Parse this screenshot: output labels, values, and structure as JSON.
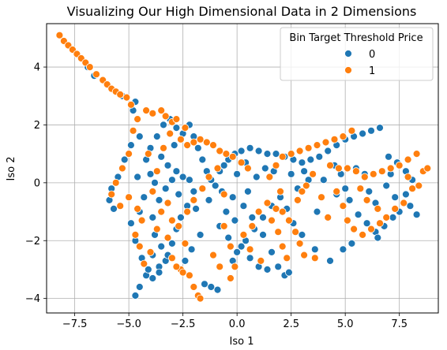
{
  "chart_data": {
    "type": "scatter",
    "title": "Visualizing Our High Dimensional Data in 2 Dimensions",
    "xlabel": "Iso 1",
    "ylabel": "Iso 2",
    "xlim": [
      -8.8,
      9.3
    ],
    "ylim": [
      -4.5,
      5.5
    ],
    "xticks": [
      -7.5,
      -5.0,
      -2.5,
      0.0,
      2.5,
      5.0,
      7.5
    ],
    "xtick_labels": [
      "−7.5",
      "−5.0",
      "−2.5",
      "0.0",
      "2.5",
      "5.0",
      "7.5"
    ],
    "yticks": [
      -4,
      -2,
      0,
      2,
      4
    ],
    "ytick_labels": [
      "−4",
      "−2",
      "0",
      "2",
      "4"
    ],
    "grid": true,
    "legend": {
      "title": "Bin Target Threshold Price",
      "placement": "top-right",
      "entries": [
        "0",
        "1"
      ]
    },
    "colors": {
      "0": "#1f77b4",
      "1": "#ff7f0e"
    },
    "series": [
      {
        "name": "0",
        "points": [
          [
            -6.9,
            4.0
          ],
          [
            -6.6,
            3.7
          ],
          [
            -5.3,
            3.0
          ],
          [
            -4.7,
            2.8
          ],
          [
            -4.8,
            2.5
          ],
          [
            -4.5,
            1.6
          ],
          [
            -4.9,
            1.3
          ],
          [
            -5.2,
            0.8
          ],
          [
            -5.5,
            0.2
          ],
          [
            -5.8,
            -0.2
          ],
          [
            -5.9,
            -0.6
          ],
          [
            -5.7,
            -0.9
          ],
          [
            -4.9,
            -1.4
          ],
          [
            -4.7,
            -2.0
          ],
          [
            -4.4,
            -2.6
          ],
          [
            -4.2,
            -3.2
          ],
          [
            -4.5,
            -3.6
          ],
          [
            -4.7,
            -3.9
          ],
          [
            -4.1,
            -3.0
          ],
          [
            -3.9,
            -2.5
          ],
          [
            -3.6,
            -2.9
          ],
          [
            -3.3,
            -2.7
          ],
          [
            -3.5,
            -2.2
          ],
          [
            -3.8,
            -1.8
          ],
          [
            -3.9,
            -1.2
          ],
          [
            -3.6,
            -0.6
          ],
          [
            -3.3,
            -0.2
          ],
          [
            -3.0,
            0.1
          ],
          [
            -2.8,
            0.4
          ],
          [
            -2.5,
            0.2
          ],
          [
            -2.2,
            0.1
          ],
          [
            -2.0,
            -0.3
          ],
          [
            -2.3,
            -0.8
          ],
          [
            -2.6,
            -1.2
          ],
          [
            -2.8,
            -1.6
          ],
          [
            -3.0,
            -2.1
          ],
          [
            -3.2,
            -2.5
          ],
          [
            -3.6,
            -3.1
          ],
          [
            -3.9,
            -3.3
          ],
          [
            -4.0,
            0.3
          ],
          [
            -4.2,
            0.8
          ],
          [
            -4.0,
            1.2
          ],
          [
            -3.7,
            1.6
          ],
          [
            -3.4,
            2.0
          ],
          [
            -3.1,
            2.2
          ],
          [
            -2.8,
            1.9
          ],
          [
            -2.5,
            1.7
          ],
          [
            -2.2,
            2.0
          ],
          [
            -2.0,
            1.6
          ],
          [
            -1.8,
            1.2
          ],
          [
            -1.6,
            0.8
          ],
          [
            -1.4,
            0.4
          ],
          [
            -1.2,
            0.1
          ],
          [
            -1.0,
            -0.1
          ],
          [
            -0.8,
            0.4
          ],
          [
            -0.6,
            0.6
          ],
          [
            -0.4,
            0.8
          ],
          [
            -0.1,
            1.0
          ],
          [
            0.2,
            1.1
          ],
          [
            0.6,
            1.2
          ],
          [
            1.0,
            1.1
          ],
          [
            1.4,
            1.0
          ],
          [
            1.8,
            1.0
          ],
          [
            2.2,
            0.9
          ],
          [
            2.6,
            0.8
          ],
          [
            3.0,
            0.7
          ],
          [
            3.4,
            0.8
          ],
          [
            3.8,
            0.9
          ],
          [
            4.2,
            1.1
          ],
          [
            4.6,
            1.3
          ],
          [
            5.0,
            1.5
          ],
          [
            5.4,
            1.6
          ],
          [
            5.8,
            1.7
          ],
          [
            6.2,
            1.8
          ],
          [
            6.6,
            1.9
          ],
          [
            7.0,
            0.9
          ],
          [
            7.4,
            0.7
          ],
          [
            7.8,
            0.4
          ],
          [
            8.1,
            0.1
          ],
          [
            7.8,
            -0.4
          ],
          [
            8.0,
            -0.8
          ],
          [
            8.3,
            -1.1
          ],
          [
            7.5,
            -1.0
          ],
          [
            7.2,
            -1.2
          ],
          [
            6.8,
            -1.5
          ],
          [
            6.4,
            -1.7
          ],
          [
            6.0,
            -1.4
          ],
          [
            5.6,
            -1.1
          ],
          [
            5.2,
            -0.6
          ],
          [
            5.0,
            -0.2
          ],
          [
            4.8,
            0.3
          ],
          [
            4.5,
            0.6
          ],
          [
            5.9,
            0.3
          ],
          [
            6.1,
            -0.3
          ],
          [
            6.4,
            -0.7
          ],
          [
            6.5,
            -1.9
          ],
          [
            5.3,
            -2.1
          ],
          [
            4.9,
            -2.3
          ],
          [
            4.3,
            -2.7
          ],
          [
            3.6,
            -2.3
          ],
          [
            3.0,
            -1.8
          ],
          [
            2.6,
            -1.4
          ],
          [
            2.3,
            -0.9
          ],
          [
            2.0,
            -0.5
          ],
          [
            1.6,
            -0.8
          ],
          [
            1.2,
            -1.2
          ],
          [
            0.8,
            -1.6
          ],
          [
            0.4,
            -2.0
          ],
          [
            0.0,
            -2.4
          ],
          [
            -0.2,
            -2.7
          ],
          [
            0.2,
            -2.2
          ],
          [
            0.6,
            -2.6
          ],
          [
            1.0,
            -2.9
          ],
          [
            1.4,
            -3.0
          ],
          [
            1.9,
            -2.9
          ],
          [
            2.2,
            -3.2
          ],
          [
            2.4,
            -3.1
          ],
          [
            1.6,
            -2.4
          ],
          [
            1.2,
            -1.8
          ],
          [
            0.7,
            -1.2
          ],
          [
            0.3,
            -0.8
          ],
          [
            -0.2,
            -0.5
          ],
          [
            -0.5,
            -1.0
          ],
          [
            -0.8,
            -1.5
          ],
          [
            -0.4,
            -1.9
          ],
          [
            -0.1,
            -1.3
          ],
          [
            0.5,
            -0.3
          ],
          [
            0.9,
            0.2
          ],
          [
            1.3,
            0.5
          ],
          [
            1.7,
            0.4
          ],
          [
            2.5,
            0.3
          ],
          [
            2.8,
            -0.2
          ],
          [
            3.1,
            0.4
          ],
          [
            3.3,
            0.1
          ],
          [
            4.0,
            0.1
          ],
          [
            5.5,
            0.5
          ],
          [
            6.9,
            -0.1
          ],
          [
            7.1,
            0.3
          ],
          [
            -2.7,
            -0.4
          ],
          [
            -2.9,
            1.3
          ],
          [
            -3.2,
            0.6
          ],
          [
            -3.5,
            0.9
          ],
          [
            -3.8,
            0.0
          ],
          [
            -4.3,
            -0.5
          ],
          [
            -4.5,
            -1.0
          ],
          [
            -4.6,
            0.2
          ],
          [
            -1.5,
            -3.5
          ],
          [
            -1.2,
            -3.6
          ],
          [
            -0.9,
            -3.7
          ],
          [
            -2.1,
            -2.3
          ],
          [
            -2.4,
            -2.7
          ],
          [
            -1.7,
            -1.8
          ],
          [
            -1.9,
            -0.9
          ],
          [
            -1.3,
            -0.6
          ],
          [
            -0.7,
            -0.3
          ],
          [
            0.0,
            0.3
          ],
          [
            0.4,
            0.7
          ],
          [
            3.7,
            -1.0
          ],
          [
            4.6,
            -0.4
          ],
          [
            7.3,
            -0.5
          ]
        ]
      },
      {
        "name": "1",
        "points": [
          [
            -8.2,
            5.1
          ],
          [
            -8.0,
            4.9
          ],
          [
            -7.8,
            4.75
          ],
          [
            -7.6,
            4.6
          ],
          [
            -7.4,
            4.45
          ],
          [
            -7.2,
            4.3
          ],
          [
            -7.0,
            4.15
          ],
          [
            -6.8,
            4.0
          ],
          [
            -6.5,
            3.75
          ],
          [
            -6.2,
            3.55
          ],
          [
            -6.0,
            3.4
          ],
          [
            -5.8,
            3.25
          ],
          [
            -5.6,
            3.15
          ],
          [
            -5.4,
            3.05
          ],
          [
            -5.1,
            2.95
          ],
          [
            -4.9,
            2.7
          ],
          [
            -4.2,
            2.5
          ],
          [
            -3.9,
            2.4
          ],
          [
            -3.5,
            2.5
          ],
          [
            -3.3,
            2.3
          ],
          [
            -3.0,
            2.1
          ],
          [
            -2.6,
            1.5
          ],
          [
            -2.3,
            1.3
          ],
          [
            -2.0,
            1.4
          ],
          [
            -1.7,
            1.5
          ],
          [
            -1.4,
            1.4
          ],
          [
            -1.1,
            1.3
          ],
          [
            -0.8,
            1.1
          ],
          [
            -0.5,
            1.0
          ],
          [
            -0.2,
            0.9
          ],
          [
            0.2,
            0.7
          ],
          [
            0.5,
            0.5
          ],
          [
            -4.6,
            2.2
          ],
          [
            -4.8,
            1.8
          ],
          [
            -5.0,
            1.0
          ],
          [
            -5.3,
            0.5
          ],
          [
            -5.6,
            0.0
          ],
          [
            -5.8,
            -0.4
          ],
          [
            -5.4,
            -0.8
          ],
          [
            -5.0,
            -0.5
          ],
          [
            -4.6,
            -0.9
          ],
          [
            -4.4,
            -1.3
          ],
          [
            -4.7,
            -1.8
          ],
          [
            -4.5,
            -2.2
          ],
          [
            -4.3,
            -2.8
          ],
          [
            -4.0,
            -2.4
          ],
          [
            -3.7,
            -1.6
          ],
          [
            -3.5,
            -1.0
          ],
          [
            -3.2,
            -0.7
          ],
          [
            -3.0,
            -1.3
          ],
          [
            -3.2,
            -1.9
          ],
          [
            -3.0,
            -2.6
          ],
          [
            -2.6,
            -3.0
          ],
          [
            -2.2,
            -3.2
          ],
          [
            -2.0,
            -3.6
          ],
          [
            -1.8,
            -3.9
          ],
          [
            -1.7,
            -4.0
          ],
          [
            -2.5,
            -3.1
          ],
          [
            -2.8,
            -2.9
          ],
          [
            -2.3,
            -1.0
          ],
          [
            -2.0,
            -0.6
          ],
          [
            -1.6,
            -0.2
          ],
          [
            -1.3,
            0.2
          ],
          [
            -0.9,
            0.5
          ],
          [
            -0.6,
            -0.4
          ],
          [
            -0.6,
            -1.5
          ],
          [
            -0.3,
            -2.2
          ],
          [
            -0.1,
            -2.9
          ],
          [
            -0.3,
            -3.3
          ],
          [
            0.3,
            -1.8
          ],
          [
            0.7,
            -1.5
          ],
          [
            1.0,
            -1.0
          ],
          [
            1.4,
            -0.7
          ],
          [
            1.8,
            -0.9
          ],
          [
            2.1,
            -1.0
          ],
          [
            2.4,
            -1.3
          ],
          [
            2.7,
            -1.7
          ],
          [
            2.9,
            -2.1
          ],
          [
            3.1,
            -2.5
          ],
          [
            3.6,
            -2.6
          ],
          [
            2.3,
            -2.6
          ],
          [
            2.1,
            -2.2
          ],
          [
            1.9,
            -1.7
          ],
          [
            1.6,
            -1.3
          ],
          [
            2.8,
            -0.6
          ],
          [
            3.0,
            -0.3
          ],
          [
            3.2,
            -0.1
          ],
          [
            2.0,
            -0.3
          ],
          [
            1.5,
            0.2
          ],
          [
            1.8,
            0.6
          ],
          [
            2.1,
            0.9
          ],
          [
            2.5,
            1.0
          ],
          [
            2.9,
            1.1
          ],
          [
            3.3,
            1.2
          ],
          [
            3.7,
            1.3
          ],
          [
            4.1,
            1.4
          ],
          [
            4.5,
            1.5
          ],
          [
            4.9,
            1.6
          ],
          [
            5.3,
            1.8
          ],
          [
            4.3,
            0.6
          ],
          [
            4.7,
            0.5
          ],
          [
            5.1,
            0.5
          ],
          [
            5.5,
            0.4
          ],
          [
            5.9,
            0.2
          ],
          [
            6.3,
            0.3
          ],
          [
            6.7,
            0.4
          ],
          [
            7.1,
            0.5
          ],
          [
            7.5,
            0.6
          ],
          [
            7.9,
            0.8
          ],
          [
            8.3,
            1.0
          ],
          [
            8.6,
            0.4
          ],
          [
            8.8,
            0.5
          ],
          [
            8.1,
            -0.2
          ],
          [
            7.7,
            -0.7
          ],
          [
            7.3,
            -0.9
          ],
          [
            6.9,
            -1.2
          ],
          [
            6.6,
            -1.4
          ],
          [
            6.2,
            -1.6
          ],
          [
            5.8,
            -1.8
          ],
          [
            5.4,
            -1.6
          ],
          [
            5.1,
            -1.3
          ],
          [
            4.9,
            -0.8
          ],
          [
            4.6,
            -0.3
          ],
          [
            6.5,
            -0.9
          ],
          [
            6.0,
            -0.6
          ],
          [
            5.7,
            -0.2
          ],
          [
            7.9,
            0.2
          ],
          [
            8.4,
            -0.1
          ],
          [
            -3.7,
            0.4
          ],
          [
            -3.4,
            1.2
          ],
          [
            -3.1,
            1.7
          ],
          [
            -2.8,
            2.2
          ],
          [
            -2.4,
            1.9
          ],
          [
            -4.1,
            1.0
          ],
          [
            -3.9,
            -0.3
          ],
          [
            -2.7,
            -1.5
          ],
          [
            -2.4,
            -2.1
          ],
          [
            -1.1,
            -2.5
          ],
          [
            -0.8,
            -2.9
          ],
          [
            0.6,
            -2.3
          ],
          [
            1.1,
            -2.7
          ],
          [
            3.9,
            -0.5
          ],
          [
            4.2,
            -1.2
          ],
          [
            3.5,
            0.3
          ]
        ]
      }
    ]
  }
}
